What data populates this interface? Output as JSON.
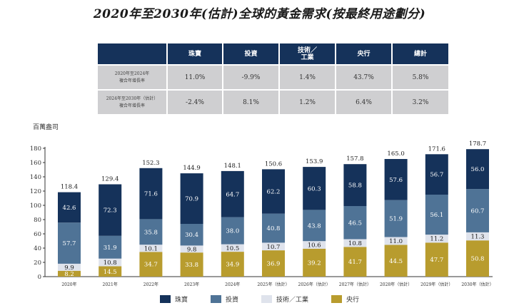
{
  "title": "2020年至2030年(估計)全球的黃金需求(按最終用途劃分)",
  "cagr_table": {
    "headers": [
      "",
      "珠寶",
      "投資",
      "技術／\n工業",
      "央行",
      "總計"
    ],
    "header_tech_line1": "技術／",
    "header_tech_line2": "工業",
    "rows": [
      {
        "label_line1": "2020年至2024年",
        "label_line2": "複合年增長率",
        "values": [
          "11.0%",
          "-9.9%",
          "1.4%",
          "43.7%",
          "5.8%"
        ]
      },
      {
        "label_line1": "2024年至2030年（估計）",
        "label_line2": "複合年增長率",
        "values": [
          "-2.4%",
          "8.1%",
          "1.2%",
          "6.4%",
          "3.2%"
        ]
      }
    ]
  },
  "chart_data": {
    "type": "bar",
    "stacked": true,
    "title": "",
    "ylabel": "百萬盎司",
    "xlabel": "",
    "ylim": [
      0,
      180
    ],
    "yticks": [
      0,
      20,
      40,
      60,
      80,
      100,
      120,
      140,
      160,
      180
    ],
    "grid": false,
    "legend_position": "bottom",
    "categories": [
      "2020年",
      "2021年",
      "2022年",
      "2023年",
      "2024年",
      "2025年（估計）",
      "2026年（估計）",
      "2027年（估計）",
      "2028年（估計）",
      "2029年（估計）",
      "2030年（估計）"
    ],
    "series": [
      {
        "name": "央行",
        "color": "#b89c2e",
        "label_color": "#ffffff",
        "values": [
          8.2,
          14.5,
          34.7,
          33.8,
          34.9,
          36.9,
          39.2,
          41.7,
          44.5,
          47.7,
          50.8
        ]
      },
      {
        "name": "技術／工業",
        "color": "#dfe3ec",
        "label_color": "#1a1a1a",
        "values": [
          9.9,
          10.8,
          10.1,
          9.8,
          10.5,
          10.7,
          10.6,
          10.8,
          11.0,
          11.2,
          11.3
        ]
      },
      {
        "name": "投資",
        "color": "#4f7396",
        "label_color": "#ffffff",
        "values": [
          57.7,
          31.9,
          35.8,
          30.4,
          38.0,
          40.8,
          43.8,
          46.5,
          51.9,
          56.1,
          60.7
        ]
      },
      {
        "name": "珠寶",
        "color": "#15325a",
        "label_color": "#ffffff",
        "values": [
          42.6,
          72.3,
          71.6,
          70.9,
          64.7,
          62.2,
          60.3,
          58.8,
          57.6,
          56.7,
          56.0
        ]
      }
    ],
    "totals": [
      "118.4",
      "129.4",
      "152.3",
      "144.9",
      "148.1",
      "150.6",
      "153.9",
      "157.8",
      "165.0",
      "171.6",
      "178.7"
    ],
    "legend": [
      {
        "name": "珠寶",
        "color": "#15325a"
      },
      {
        "name": "投資",
        "color": "#4f7396"
      },
      {
        "name": "技術／工業",
        "color": "#dfe3ec"
      },
      {
        "name": "央行",
        "color": "#b89c2e"
      }
    ]
  }
}
